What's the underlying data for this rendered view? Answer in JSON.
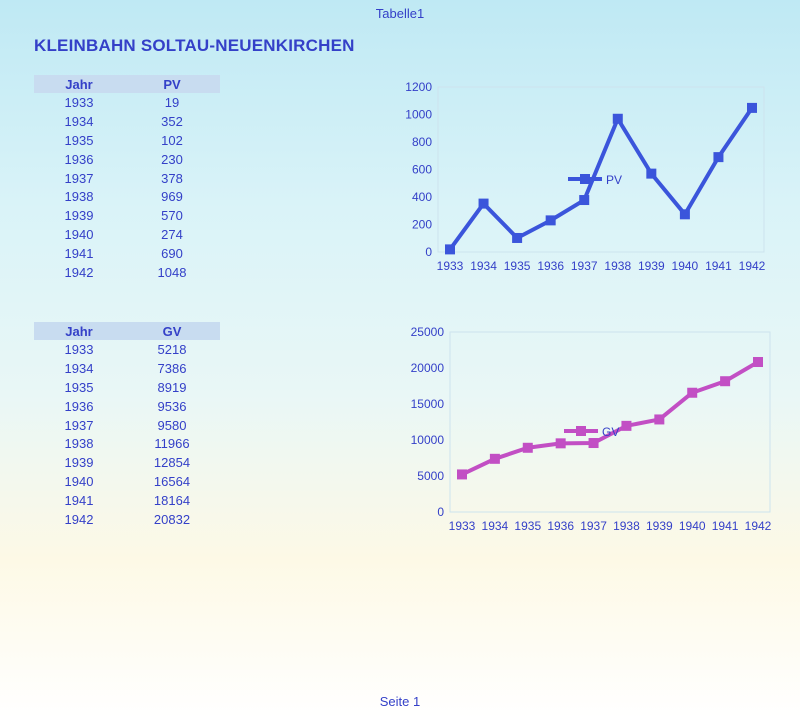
{
  "header": {
    "sheet_name": "Tabelle1"
  },
  "title": "KLEINBAHN SOLTAU-NEUENKIRCHEN",
  "footer": {
    "page_label": "Seite 1"
  },
  "tables": {
    "pv": {
      "headers": [
        "Jahr",
        "PV"
      ],
      "rows": [
        [
          "1933",
          "19"
        ],
        [
          "1934",
          "352"
        ],
        [
          "1935",
          "102"
        ],
        [
          "1936",
          "230"
        ],
        [
          "1937",
          "378"
        ],
        [
          "1938",
          "969"
        ],
        [
          "1939",
          "570"
        ],
        [
          "1940",
          "274"
        ],
        [
          "1941",
          "690"
        ],
        [
          "1942",
          "1048"
        ]
      ]
    },
    "gv": {
      "headers": [
        "Jahr",
        "GV"
      ],
      "rows": [
        [
          "1933",
          "5218"
        ],
        [
          "1934",
          "7386"
        ],
        [
          "1935",
          "8919"
        ],
        [
          "1936",
          "9536"
        ],
        [
          "1937",
          "9580"
        ],
        [
          "1938",
          "11966"
        ],
        [
          "1939",
          "12854"
        ],
        [
          "1940",
          "16564"
        ],
        [
          "1941",
          "18164"
        ],
        [
          "1942",
          "20832"
        ]
      ]
    }
  },
  "colors": {
    "pv": "#3b55db",
    "gv": "#c24fc4",
    "text": "#3440c8",
    "grid": "#cde3ee"
  },
  "chart_data": [
    {
      "id": "pv",
      "type": "line",
      "categories": [
        "1933",
        "1934",
        "1935",
        "1936",
        "1937",
        "1938",
        "1939",
        "1940",
        "1941",
        "1942"
      ],
      "series": [
        {
          "name": "PV",
          "values": [
            19,
            352,
            102,
            230,
            378,
            969,
            570,
            274,
            690,
            1048
          ]
        }
      ],
      "ylim": [
        0,
        1200
      ],
      "yticks": [
        0,
        200,
        400,
        600,
        800,
        1000,
        1200
      ],
      "grid": false,
      "legend": "inside-center",
      "marker": "square"
    },
    {
      "id": "gv",
      "type": "line",
      "categories": [
        "1933",
        "1934",
        "1935",
        "1936",
        "1937",
        "1938",
        "1939",
        "1940",
        "1941",
        "1942"
      ],
      "series": [
        {
          "name": "GV",
          "values": [
            5218,
            7386,
            8919,
            9536,
            9580,
            11966,
            12854,
            16564,
            18164,
            20832
          ]
        }
      ],
      "ylim": [
        0,
        25000
      ],
      "yticks": [
        0,
        5000,
        10000,
        15000,
        20000,
        25000
      ],
      "grid": false,
      "legend": "inside-center",
      "marker": "square"
    }
  ]
}
